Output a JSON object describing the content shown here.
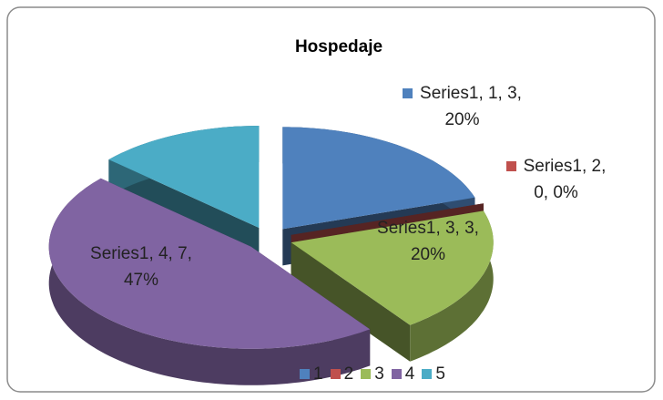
{
  "chart_data": {
    "type": "pie3d",
    "title": "Hospedaje",
    "categories": [
      "1",
      "2",
      "3",
      "4",
      "5"
    ],
    "values": [
      3,
      0,
      3,
      7,
      2
    ],
    "value_labels": [
      "Series1, 1, 3, 20%",
      "Series1, 2, 0, 0%",
      "Series1, 3, 3, 20%",
      "Series1, 4, 7, 47%",
      null
    ],
    "colors": [
      "#4f81bd",
      "#c0504d",
      "#9bbb59",
      "#8064a2",
      "#4bacc6"
    ],
    "legend": "bottom"
  }
}
